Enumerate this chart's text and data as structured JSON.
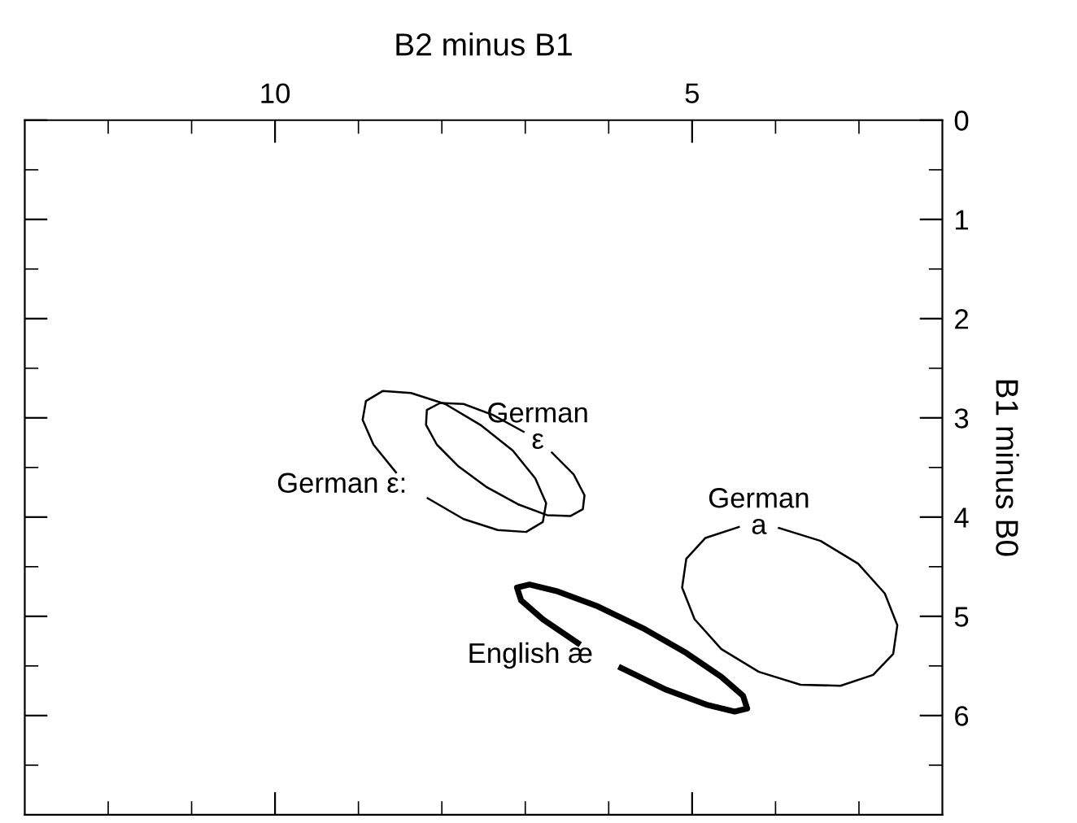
{
  "chart_data": {
    "type": "line",
    "xlabel": "B2 minus B1",
    "ylabel": "B1 minus B0",
    "xlim": [
      13,
      2
    ],
    "ylim": [
      7,
      0
    ],
    "xticks": [
      {
        "value": 12,
        "label": null
      },
      {
        "value": 11,
        "label": null
      },
      10,
      {
        "value": 9,
        "label": null
      },
      {
        "value": 8,
        "label": null
      },
      {
        "value": 7,
        "label": null
      },
      {
        "value": 6,
        "label": null
      },
      5,
      {
        "value": 4,
        "label": null
      },
      {
        "value": 3,
        "label": null
      }
    ],
    "yticks": [
      0,
      {
        "value": 0.5,
        "label": null
      },
      1,
      {
        "value": 1.5,
        "label": null
      },
      2,
      {
        "value": 2.5,
        "label": null
      },
      3,
      {
        "value": 3.5,
        "label": null
      },
      4,
      {
        "value": 4.5,
        "label": null
      },
      5,
      {
        "value": 5.5,
        "label": null
      },
      6,
      {
        "value": 6.5,
        "label": null
      }
    ],
    "marker": "none",
    "line_style": "solid",
    "series": [
      {
        "name": "German ε:",
        "color": "#000000",
        "x": [
          8.55,
          8.82,
          8.95,
          8.91,
          8.71,
          8.37,
          7.96,
          7.54,
          7.15,
          6.88,
          6.75,
          6.79,
          6.99,
          7.33,
          7.74,
          8.17
        ],
        "values": [
          3.55,
          3.27,
          3.02,
          2.83,
          2.73,
          2.75,
          2.86,
          3.07,
          3.33,
          3.61,
          3.86,
          4.05,
          4.15,
          4.13,
          4.02,
          3.81
        ]
      },
      {
        "name": "German\nε",
        "color": "#000000",
        "x": [
          6.68,
          6.42,
          6.29,
          6.31,
          6.46,
          6.74,
          7.09,
          7.46,
          7.8,
          8.06,
          8.19,
          8.18,
          8.02,
          7.74,
          7.39,
          7.02
        ],
        "values": [
          3.35,
          3.57,
          3.78,
          3.92,
          3.99,
          3.98,
          3.87,
          3.7,
          3.49,
          3.27,
          3.07,
          2.92,
          2.85,
          2.86,
          2.97,
          3.14
        ]
      },
      {
        "name": "English æ",
        "color": "#000000",
        "x": [
          6.37,
          6.79,
          7.05,
          7.1,
          6.95,
          6.61,
          6.13,
          5.59,
          5.07,
          4.65,
          4.39,
          4.34,
          4.49,
          4.83,
          5.31,
          5.85
        ],
        "values": [
          5.27,
          5.03,
          4.84,
          4.71,
          4.68,
          4.75,
          4.9,
          5.12,
          5.37,
          5.61,
          5.8,
          5.93,
          5.96,
          5.89,
          5.74,
          5.52
        ]
      },
      {
        "name": "German\na",
        "color": "#000000",
        "x": [
          3.96,
          3.46,
          3.01,
          2.69,
          2.54,
          2.59,
          2.83,
          3.22,
          3.7,
          4.2,
          4.65,
          4.97,
          5.12,
          5.07,
          4.84,
          4.44
        ],
        "values": [
          4.11,
          4.24,
          4.47,
          4.77,
          5.09,
          5.38,
          5.59,
          5.7,
          5.69,
          5.56,
          5.33,
          5.03,
          4.71,
          4.42,
          4.21,
          4.1
        ]
      }
    ]
  }
}
